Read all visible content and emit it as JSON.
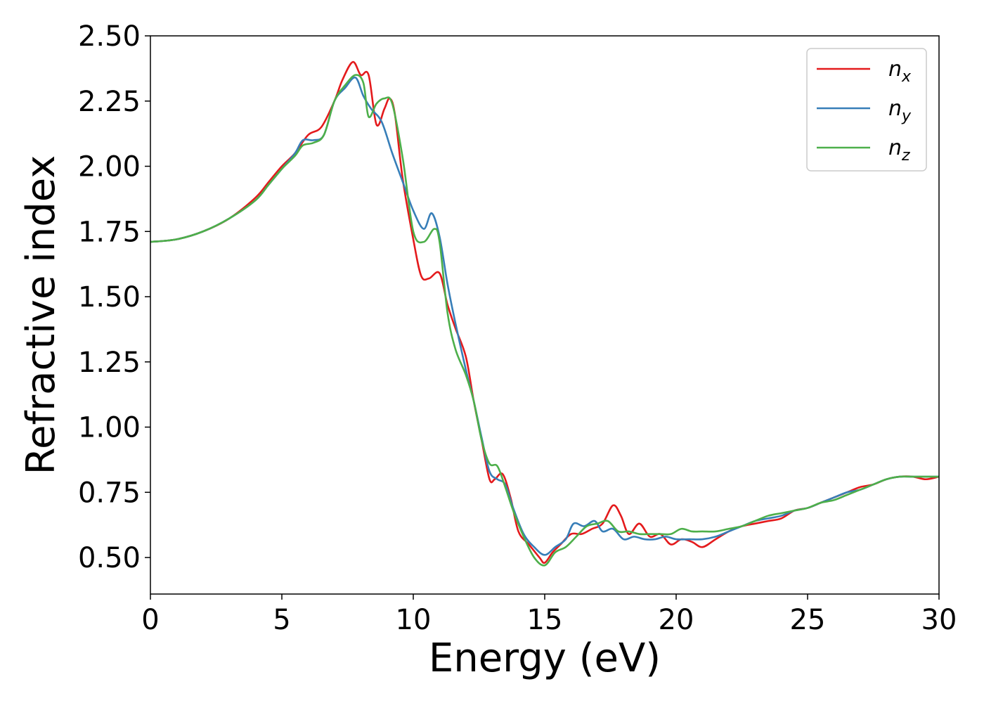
{
  "chart_data": {
    "type": "line",
    "title": "",
    "xlabel": "Energy (eV)",
    "ylabel": "Refractive index",
    "xlim": [
      0,
      30
    ],
    "ylim": [
      0.36,
      2.5
    ],
    "xticks": [
      0,
      5,
      10,
      15,
      20,
      25,
      30
    ],
    "xtick_labels": [
      "0",
      "5",
      "10",
      "15",
      "20",
      "25",
      "30"
    ],
    "yticks": [
      0.5,
      0.75,
      1.0,
      1.25,
      1.5,
      1.75,
      2.0,
      2.25,
      2.5
    ],
    "ytick_labels": [
      "0.50",
      "0.75",
      "1.00",
      "1.25",
      "1.50",
      "1.75",
      "2.00",
      "2.25",
      "2.50"
    ],
    "grid": false,
    "legend_position": "top-right",
    "series": [
      {
        "name": "n",
        "subscript": "x",
        "color": "#e41a1c",
        "x": [
          0,
          1,
          2,
          3,
          4,
          4.5,
          5,
          5.5,
          6,
          6.5,
          7,
          7.3,
          7.7,
          8,
          8.3,
          8.6,
          8.9,
          9.1,
          9.3,
          9.6,
          10,
          10.3,
          10.6,
          11,
          11.3,
          11.6,
          12,
          12.3,
          12.6,
          12.9,
          13.1,
          13.4,
          13.7,
          14,
          14.4,
          14.8,
          15,
          15.3,
          15.6,
          16,
          16.4,
          16.8,
          17.2,
          17.6,
          17.9,
          18.2,
          18.6,
          19,
          19.4,
          19.8,
          20.2,
          20.6,
          21,
          21.5,
          22,
          22.5,
          23,
          23.5,
          24,
          24.5,
          25,
          25.5,
          26,
          26.5,
          27,
          27.5,
          28,
          28.5,
          29,
          29.5,
          30
        ],
        "y": [
          1.71,
          1.72,
          1.75,
          1.8,
          1.88,
          1.94,
          2.0,
          2.05,
          2.12,
          2.15,
          2.25,
          2.33,
          2.4,
          2.35,
          2.35,
          2.16,
          2.22,
          2.26,
          2.2,
          1.95,
          1.72,
          1.58,
          1.57,
          1.59,
          1.47,
          1.38,
          1.27,
          1.1,
          0.95,
          0.8,
          0.8,
          0.82,
          0.73,
          0.6,
          0.55,
          0.5,
          0.48,
          0.52,
          0.55,
          0.59,
          0.59,
          0.61,
          0.63,
          0.7,
          0.66,
          0.59,
          0.63,
          0.58,
          0.59,
          0.55,
          0.57,
          0.56,
          0.54,
          0.57,
          0.6,
          0.62,
          0.63,
          0.64,
          0.65,
          0.68,
          0.69,
          0.71,
          0.73,
          0.75,
          0.77,
          0.78,
          0.8,
          0.81,
          0.81,
          0.8,
          0.81
        ]
      },
      {
        "name": "n",
        "subscript": "y",
        "color": "#377eb8",
        "x": [
          0,
          1,
          2,
          3,
          4,
          4.5,
          5,
          5.5,
          5.8,
          6.2,
          6.6,
          7,
          7.4,
          7.8,
          8.1,
          8.4,
          8.8,
          9.2,
          9.6,
          10,
          10.4,
          10.7,
          11,
          11.3,
          11.6,
          12,
          12.3,
          12.6,
          12.9,
          13.2,
          13.5,
          13.8,
          14.2,
          14.6,
          15,
          15.4,
          15.8,
          16.1,
          16.5,
          16.9,
          17.2,
          17.6,
          18,
          18.4,
          18.8,
          19.2,
          19.6,
          20,
          20.5,
          21,
          21.5,
          22,
          22.5,
          23,
          23.5,
          24,
          24.5,
          25,
          25.5,
          26,
          26.5,
          27,
          27.5,
          28,
          28.5,
          29,
          29.5,
          30
        ],
        "y": [
          1.71,
          1.72,
          1.75,
          1.8,
          1.87,
          1.93,
          1.99,
          2.05,
          2.1,
          2.1,
          2.12,
          2.25,
          2.3,
          2.34,
          2.27,
          2.22,
          2.17,
          2.05,
          1.94,
          1.83,
          1.76,
          1.82,
          1.73,
          1.55,
          1.4,
          1.22,
          1.1,
          0.96,
          0.83,
          0.8,
          0.78,
          0.69,
          0.59,
          0.54,
          0.51,
          0.54,
          0.57,
          0.63,
          0.62,
          0.64,
          0.6,
          0.61,
          0.57,
          0.58,
          0.57,
          0.57,
          0.58,
          0.57,
          0.57,
          0.57,
          0.58,
          0.6,
          0.62,
          0.64,
          0.65,
          0.66,
          0.68,
          0.69,
          0.71,
          0.73,
          0.75,
          0.76,
          0.78,
          0.8,
          0.81,
          0.81,
          0.81,
          0.81
        ]
      },
      {
        "name": "n",
        "subscript": "z",
        "color": "#4daf4a",
        "x": [
          0,
          1,
          2,
          3,
          4,
          4.5,
          5,
          5.5,
          5.8,
          6.2,
          6.6,
          7,
          7.4,
          7.8,
          8.1,
          8.3,
          8.6,
          8.9,
          9.2,
          9.6,
          10,
          10.4,
          10.8,
          11,
          11.3,
          11.6,
          12,
          12.3,
          12.6,
          12.9,
          13.2,
          13.5,
          13.8,
          14.2,
          14.6,
          15,
          15.4,
          15.8,
          16.2,
          16.6,
          17,
          17.4,
          17.8,
          18.2,
          18.6,
          19,
          19.4,
          19.8,
          20.2,
          20.6,
          21,
          21.5,
          22,
          22.5,
          23,
          23.5,
          24,
          24.5,
          25,
          25.5,
          26,
          26.5,
          27,
          27.5,
          28,
          28.5,
          29,
          29.5,
          30
        ],
        "y": [
          1.71,
          1.72,
          1.75,
          1.8,
          1.87,
          1.93,
          1.99,
          2.04,
          2.08,
          2.09,
          2.12,
          2.25,
          2.31,
          2.35,
          2.32,
          2.19,
          2.24,
          2.26,
          2.24,
          2.03,
          1.75,
          1.71,
          1.76,
          1.71,
          1.44,
          1.3,
          1.2,
          1.1,
          0.95,
          0.86,
          0.85,
          0.77,
          0.68,
          0.58,
          0.5,
          0.47,
          0.52,
          0.54,
          0.58,
          0.62,
          0.63,
          0.64,
          0.6,
          0.6,
          0.59,
          0.59,
          0.59,
          0.59,
          0.61,
          0.6,
          0.6,
          0.6,
          0.61,
          0.62,
          0.64,
          0.66,
          0.67,
          0.68,
          0.69,
          0.71,
          0.72,
          0.74,
          0.76,
          0.78,
          0.8,
          0.81,
          0.81,
          0.81,
          0.81
        ]
      }
    ]
  }
}
